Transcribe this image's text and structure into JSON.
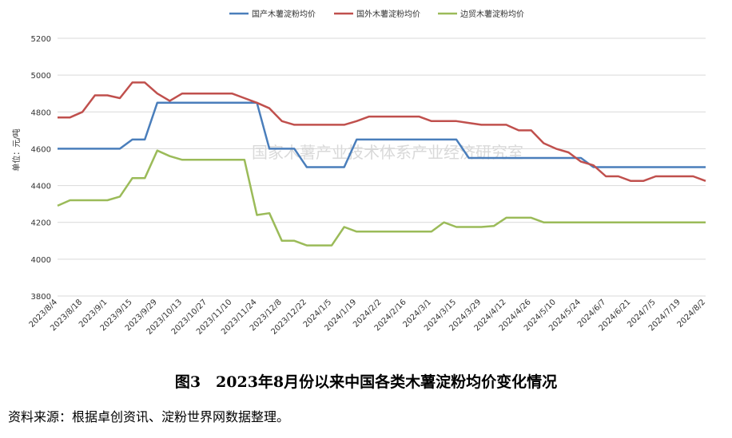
{
  "chart_data": {
    "type": "line",
    "y_label": "单位：元/吨",
    "categories": [
      "2023/8/4",
      null,
      "2023/8/18",
      null,
      "2023/9/1",
      null,
      "2023/9/15",
      null,
      "2023/9/29",
      null,
      "2023/10/13",
      null,
      "2023/10/27",
      null,
      "2023/11/10",
      null,
      "2023/11/24",
      null,
      "2023/12/8",
      null,
      "2023/12/22",
      null,
      "2024/1/5",
      null,
      "2024/1/19",
      null,
      "2024/2/2",
      null,
      "2024/2/16",
      null,
      "2024/3/1",
      null,
      "2024/3/15",
      null,
      "2024/3/29",
      null,
      "2024/4/12",
      null,
      "2024/4/26",
      null,
      "2024/5/10",
      null,
      "2024/5/24",
      null,
      "2024/6/7",
      null,
      "2024/6/21",
      null,
      "2024/7/5",
      null,
      "2024/7/19",
      null,
      "2024/8/2"
    ],
    "series": [
      {
        "name": "国产木薯淀粉均价",
        "color": "#4a7ebb",
        "values": [
          4600,
          4600,
          4600,
          4600,
          4600,
          4600,
          4650,
          4650,
          4850,
          4850,
          4850,
          4850,
          4850,
          4850,
          4850,
          4850,
          4850,
          4600,
          4600,
          4600,
          4500,
          4500,
          4500,
          4500,
          4650,
          4650,
          4650,
          4650,
          4650,
          4650,
          4650,
          4650,
          4650,
          4550,
          4550,
          4550,
          4550,
          4550,
          4550,
          4550,
          4550,
          4550,
          4550,
          4500,
          4500,
          4500,
          4500,
          4500,
          4500,
          4500,
          4500,
          4500,
          4500
        ]
      },
      {
        "name": "国外木薯淀粉均价",
        "color": "#c0504d",
        "values": [
          4770,
          4770,
          4800,
          4890,
          4890,
          4875,
          4960,
          4960,
          4900,
          4860,
          4900,
          4900,
          4900,
          4900,
          4900,
          4875,
          4850,
          4820,
          4750,
          4730,
          4730,
          4730,
          4730,
          4730,
          4750,
          4775,
          4775,
          4775,
          4775,
          4775,
          4750,
          4750,
          4750,
          4740,
          4730,
          4730,
          4730,
          4700,
          4700,
          4630,
          4600,
          4580,
          4530,
          4510,
          4450,
          4450,
          4425,
          4425,
          4450,
          4450,
          4450,
          4450,
          4425
        ]
      },
      {
        "name": "边贸木薯淀粉均价",
        "color": "#9bbb59",
        "values": [
          4290,
          4320,
          4320,
          4320,
          4320,
          4340,
          4440,
          4440,
          4590,
          4560,
          4540,
          4540,
          4540,
          4540,
          4540,
          4540,
          4240,
          4250,
          4100,
          4100,
          4075,
          4075,
          4075,
          4175,
          4150,
          4150,
          4150,
          4150,
          4150,
          4150,
          4150,
          4200,
          4175,
          4175,
          4175,
          4180,
          4225,
          4225,
          4225,
          4200,
          4200,
          4200,
          4200,
          4200,
          4200,
          4200,
          4200,
          4200,
          4200,
          4200,
          4200,
          4200,
          4200
        ]
      }
    ],
    "ylim": [
      3800,
      5200
    ],
    "yticks": [
      3800,
      4000,
      4200,
      4400,
      4600,
      4800,
      5000,
      5200
    ],
    "grid": true,
    "legend": "top"
  },
  "watermark": "国家木薯产业技术体系产业经济研究室",
  "caption": "图3　2023年8月份以来中国各类木薯淀粉均价变化情况",
  "source": "资料来源：根据卓创资讯、淀粉世界网数据整理。"
}
